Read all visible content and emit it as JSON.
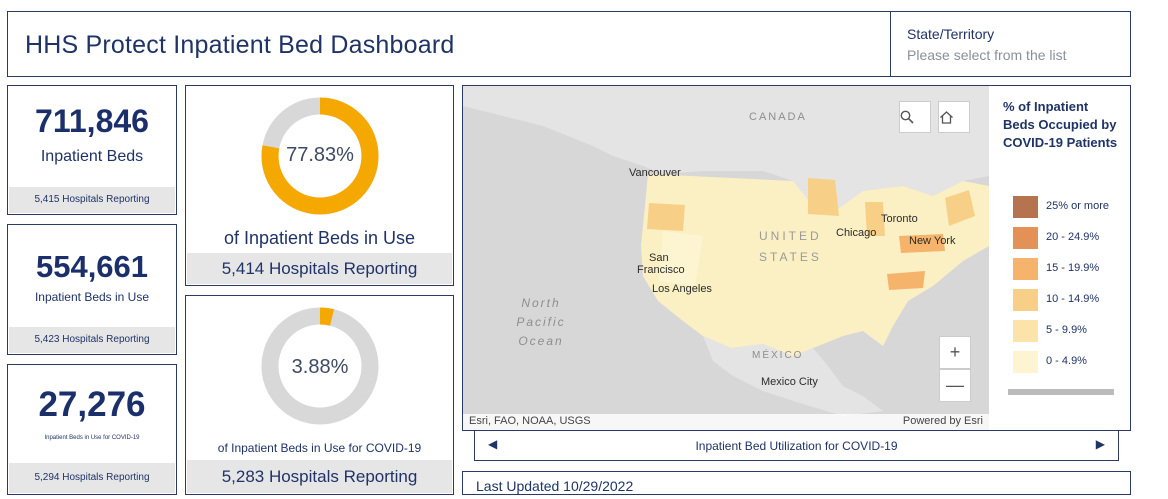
{
  "header": {
    "title": "HHS Protect Inpatient Bed Dashboard"
  },
  "state_selector": {
    "label": "State/Territory",
    "placeholder": "Please select from the list"
  },
  "cards": {
    "total_beds": {
      "value": "711,846",
      "label": "Inpatient Beds",
      "footer": "5,415 Hospitals Reporting"
    },
    "beds_in_use": {
      "value": "554,661",
      "label": "Inpatient Beds in Use",
      "footer": "5,423 Hospitals Reporting"
    },
    "covid_beds": {
      "value": "27,276",
      "label": "Inpatient Beds in Use for COVID-19",
      "footer": "5,294 Hospitals Reporting"
    }
  },
  "donuts": {
    "beds_in_use": {
      "percent": 77.83,
      "label_text": "77.83%",
      "caption": "of Inpatient Beds in Use",
      "footer": "5,414 Hospitals Reporting",
      "color": "#f5a800",
      "track": "#d8d8d8"
    },
    "covid": {
      "percent": 3.88,
      "label_text": "3.88%",
      "caption": "of Inpatient Beds in Use for COVID-19",
      "footer": "5,283 Hospitals Reporting",
      "color": "#f5a800",
      "track": "#d8d8d8"
    }
  },
  "map": {
    "labels": {
      "canada": "CANADA",
      "united": "UNITED",
      "states": "STATES",
      "mexico": "MÉXICO",
      "vancouver": "Vancouver",
      "san": "San",
      "francisco": "Francisco",
      "los_angeles": "Los Angeles",
      "chicago": "Chicago",
      "toronto": "Toronto",
      "new_york": "New York",
      "mexico_city": "Mexico City",
      "north": "North",
      "pacific": "Pacific",
      "ocean": "Ocean"
    },
    "attribution": "Esri, FAO, NOAA, USGS",
    "powered_by": "Powered by Esri",
    "icons": {
      "search": "search-icon",
      "home": "home-icon",
      "zoom_in": "plus-icon",
      "zoom_out": "minus-icon"
    },
    "zoom_in_symbol": "+",
    "zoom_out_symbol": "—"
  },
  "legend": {
    "title": "% of Inpatient Beds Occupied by COVID-19 Patients",
    "items": [
      {
        "label": "25% or more",
        "color": "#b5734f"
      },
      {
        "label": "20 - 24.9%",
        "color": "#e39156"
      },
      {
        "label": "15 - 19.9%",
        "color": "#f5b36c"
      },
      {
        "label": "10 - 14.9%",
        "color": "#f8cf86"
      },
      {
        "label": "5 - 9.9%",
        "color": "#fbe3aa"
      },
      {
        "label": "0 - 4.9%",
        "color": "#fdf5d2"
      }
    ]
  },
  "map_nav": {
    "label": "Inpatient Bed Utilization for COVID-19",
    "prev_symbol": "◀",
    "next_symbol": "▶"
  },
  "footer": {
    "last_updated": "Last Updated 10/29/2022"
  }
}
